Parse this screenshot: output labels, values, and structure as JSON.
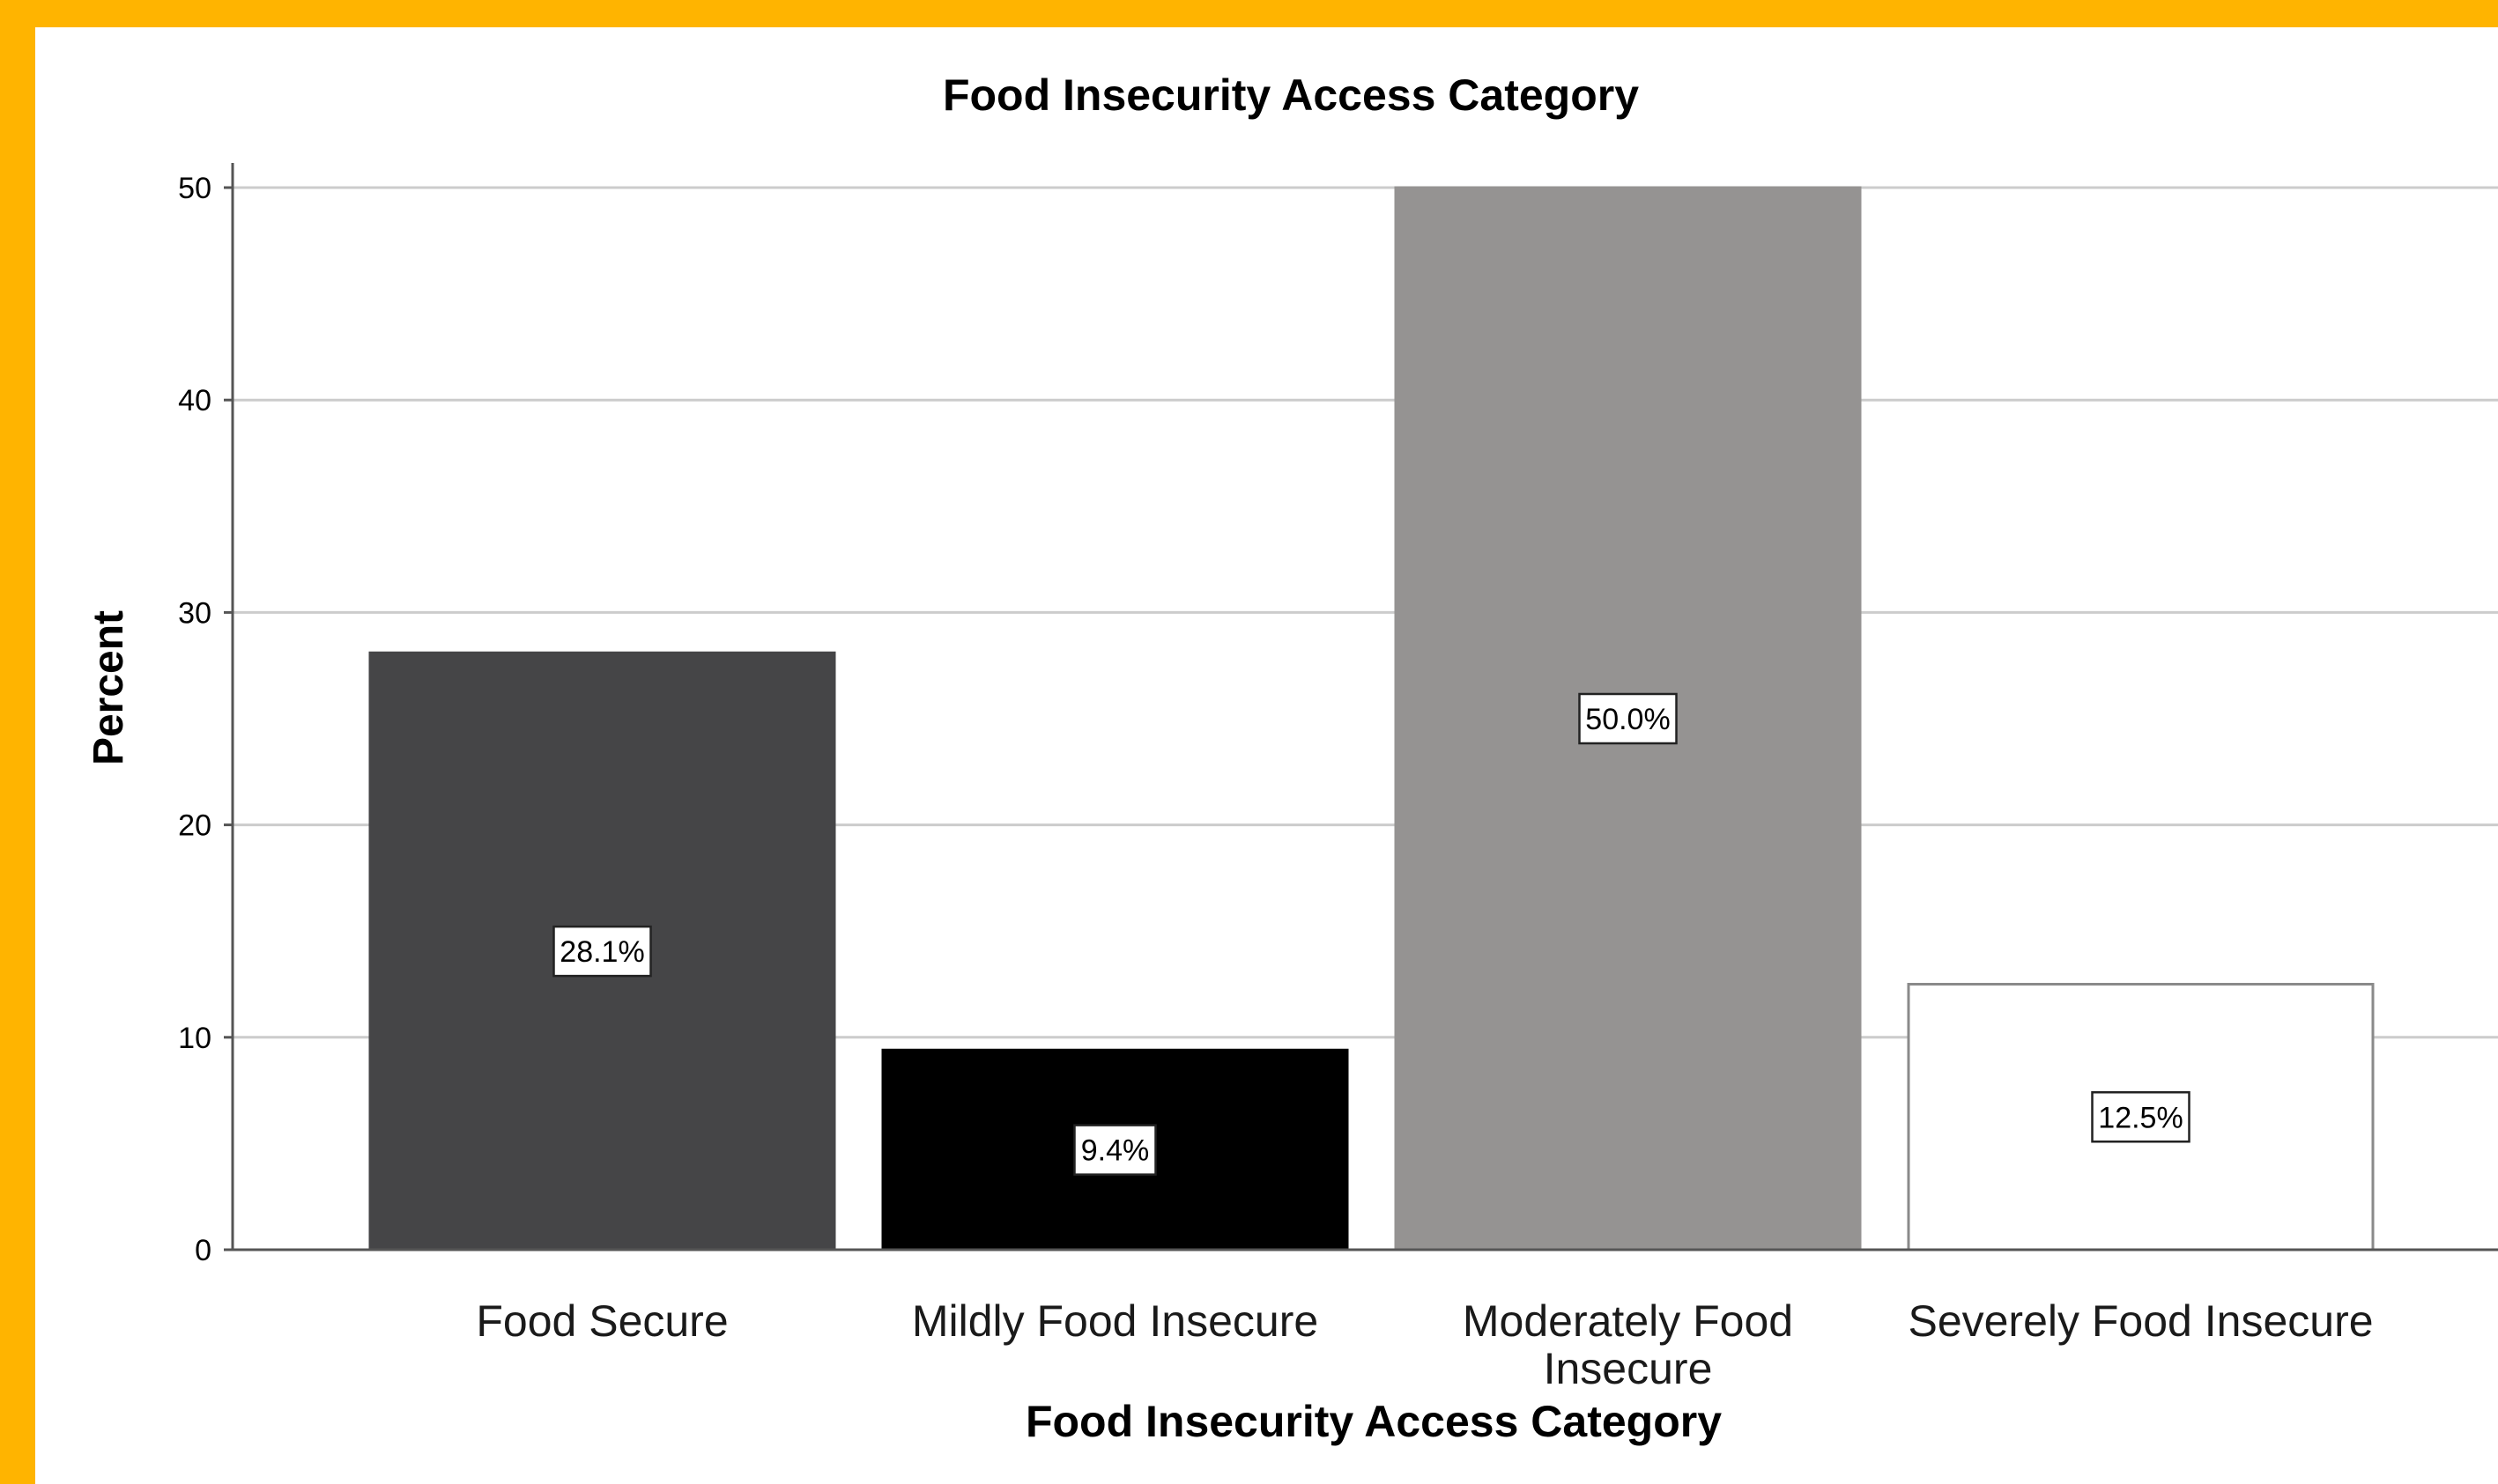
{
  "chart_data": {
    "type": "bar",
    "title": "Food Insecurity Access Category",
    "xlabel": "Food Insecurity Access Category",
    "ylabel": "Percent",
    "categories": [
      "Food Secure",
      "Mildly Food Insecure",
      "Moderately Food Insecure",
      "Severely Food Insecure"
    ],
    "category_lines": [
      [
        "Food Secure"
      ],
      [
        "Mildly Food Insecure"
      ],
      [
        "Moderately Food",
        "Insecure"
      ],
      [
        "Severely Food Insecure"
      ]
    ],
    "values": [
      28.1,
      9.4,
      50.0,
      12.5
    ],
    "data_labels": [
      "28.1%",
      "9.4%",
      "50.0%",
      "12.5%"
    ],
    "bar_colors": [
      "#454547",
      "#000000",
      "#959392",
      "#ffffff"
    ],
    "yticks": [
      0,
      10,
      20,
      30,
      40,
      50
    ],
    "ylim": [
      0,
      50
    ],
    "grid": true,
    "legend": "none",
    "colors": {
      "border": "#FFB400",
      "grid": "#cccccc",
      "axis": "#555555"
    }
  }
}
